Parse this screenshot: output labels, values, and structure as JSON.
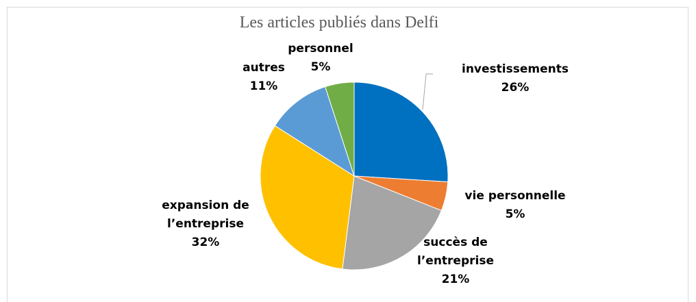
{
  "chart_data": {
    "type": "pie",
    "title": "Les articles publiés dans Delfi",
    "categories": [
      "investissements",
      "vie personnelle",
      "succès de l’entreprise",
      "expansion de l’entreprise",
      "autres",
      "personnel"
    ],
    "values": [
      26,
      5,
      21,
      32,
      11,
      5
    ],
    "value_labels": [
      "26%",
      "5%",
      "21%",
      "32%",
      "11%",
      "5%"
    ],
    "colors": [
      "#0070c0",
      "#ed7d31",
      "#a5a5a5",
      "#ffc000",
      "#5b9bd5",
      "#70ad47"
    ]
  }
}
